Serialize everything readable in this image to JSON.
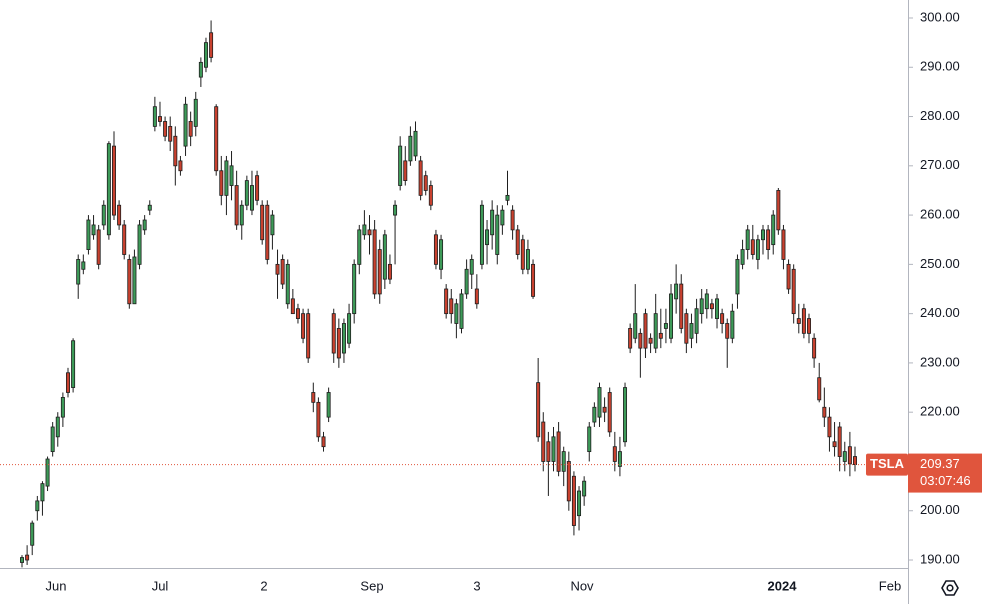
{
  "chart_data": {
    "type": "candlestick",
    "symbol": "TSLA",
    "countdown": "03:07:46",
    "up_color": "#3d9a58",
    "down_color": "#c8412f",
    "wick_color": "#1e1e1e",
    "price_line_color": "#e0553d",
    "open": [
      189.5,
      191,
      193,
      200,
      202,
      205,
      212,
      215,
      219,
      228,
      225,
      246,
      249,
      253,
      256,
      257,
      258,
      256,
      274,
      262,
      258,
      251,
      242,
      250,
      257,
      261,
      278,
      280,
      279,
      278,
      276,
      271,
      274,
      279,
      278,
      288,
      290,
      297,
      282,
      269,
      264,
      266,
      266,
      258,
      262,
      261,
      268,
      262,
      262,
      256,
      250,
      251,
      242,
      243,
      241,
      240,
      240,
      224,
      222,
      215,
      219,
      240,
      237,
      232,
      234,
      240,
      250,
      256,
      257,
      257,
      253,
      247,
      250,
      260,
      266,
      271,
      271,
      272,
      271,
      268,
      266,
      256,
      249,
      245,
      243,
      238,
      237,
      244,
      248,
      245,
      250,
      254,
      256,
      252,
      258,
      263,
      261,
      257,
      255,
      249,
      250,
      226,
      218,
      214,
      210,
      216,
      208,
      210,
      207,
      199,
      203,
      212,
      218,
      219,
      221,
      224,
      213,
      209,
      214,
      237,
      235,
      236,
      240,
      235,
      233,
      236,
      237,
      235,
      243,
      246,
      240,
      235,
      236,
      240,
      241,
      242,
      239,
      240,
      238,
      235,
      244,
      250,
      253,
      255,
      251,
      255,
      257,
      254,
      265,
      257,
      250,
      249,
      239,
      241,
      239,
      235,
      227,
      221,
      219,
      214,
      217,
      210,
      213,
      211
    ],
    "high": [
      191,
      193,
      198,
      203,
      206,
      211,
      218,
      220,
      224,
      229,
      235,
      252,
      252,
      260,
      260,
      258,
      263,
      275,
      277,
      263,
      259,
      252,
      253,
      259,
      260,
      263,
      284,
      283,
      280,
      280,
      278,
      272,
      284,
      281,
      285,
      292,
      296,
      299.5,
      282.5,
      272,
      272,
      273,
      269,
      263,
      268,
      269,
      269,
      263,
      263,
      261,
      253,
      252,
      251,
      245,
      242,
      241,
      241,
      226,
      223,
      216,
      225,
      241,
      239,
      239,
      242,
      251,
      258,
      261,
      260,
      259,
      255,
      257,
      252,
      263,
      276,
      274,
      278,
      279,
      272,
      269,
      267,
      257,
      256,
      246,
      245,
      243,
      245,
      251,
      252,
      248,
      263,
      259,
      263,
      262,
      262,
      269,
      262,
      258,
      256,
      255,
      251,
      231,
      220,
      216,
      217,
      218,
      213,
      212,
      208,
      205,
      207,
      218,
      222,
      226,
      223,
      225,
      216,
      215,
      226,
      238,
      246,
      237,
      241,
      236,
      244,
      241,
      241,
      246,
      250,
      248,
      241,
      240,
      243,
      245,
      245,
      243,
      244,
      241,
      239,
      242,
      252,
      255,
      258,
      258,
      256,
      258,
      258,
      261,
      265.5,
      258,
      251,
      250,
      242,
      242,
      240,
      236,
      230,
      225,
      221,
      218,
      218,
      214,
      216,
      213
    ],
    "low": [
      188.5,
      189,
      191,
      198,
      199,
      204,
      211,
      213,
      217,
      223,
      224,
      243,
      248,
      252,
      255,
      249,
      257,
      255,
      259,
      257,
      251,
      241,
      242,
      249,
      256,
      260,
      277,
      278,
      275,
      273,
      266,
      268,
      272,
      274,
      276,
      286,
      289,
      291,
      268,
      262,
      260,
      263,
      257,
      255,
      261,
      260,
      262,
      254,
      250,
      253,
      243,
      245,
      241,
      240,
      238,
      234,
      230,
      220,
      214,
      212,
      218,
      230,
      229,
      230,
      233,
      238,
      248,
      255,
      252,
      243,
      242,
      245,
      246,
      250,
      265,
      266,
      270,
      271,
      263,
      264,
      261,
      249,
      247,
      239,
      238,
      235,
      236,
      243,
      245,
      241,
      249,
      250,
      253,
      250,
      256,
      262,
      255,
      251,
      248,
      248,
      243,
      214,
      208,
      203,
      208,
      207,
      205,
      200,
      195,
      196,
      201,
      210,
      217,
      217,
      218,
      215,
      208,
      207,
      213,
      232,
      234,
      227,
      231,
      232,
      232,
      233,
      234,
      234,
      240,
      236,
      232,
      233,
      234,
      238,
      239,
      239,
      237,
      236,
      229,
      234,
      241,
      249,
      251,
      251,
      249,
      252,
      251,
      252,
      256,
      249,
      244,
      238,
      236,
      235,
      234,
      229,
      222,
      217,
      212,
      211,
      208,
      208,
      207,
      208
    ],
    "close": [
      190.5,
      190,
      197.5,
      202,
      205.5,
      210.5,
      217,
      219,
      223,
      224,
      234.5,
      251,
      250.5,
      259,
      258,
      250,
      262,
      274.5,
      260,
      258,
      252,
      242,
      251.5,
      258,
      259,
      262,
      282,
      279,
      276,
      275,
      270,
      269,
      282.5,
      276,
      283.5,
      291,
      295,
      292,
      269,
      264,
      271,
      270,
      258,
      262,
      267,
      266,
      263,
      255,
      251,
      260,
      248,
      246,
      250,
      240,
      239,
      235,
      231,
      222,
      215,
      213,
      224,
      232,
      231,
      238,
      240,
      250,
      257,
      258,
      256,
      244,
      244,
      256,
      247,
      262,
      274,
      267,
      276,
      277,
      264,
      265,
      262,
      250,
      255,
      240,
      240,
      242,
      244,
      249,
      251,
      242,
      262,
      257,
      261,
      260,
      261,
      264,
      257,
      252,
      249,
      253,
      243.5,
      215,
      210,
      210,
      215,
      208,
      212,
      202,
      197,
      204,
      206,
      217,
      221,
      225,
      220,
      216,
      210,
      212,
      225,
      233,
      240,
      233,
      233,
      234,
      240,
      235,
      238,
      244,
      246,
      237,
      234,
      238,
      241,
      243,
      244,
      241,
      243,
      238,
      235,
      240.5,
      251,
      253,
      257,
      252,
      255,
      257,
      253,
      260,
      257,
      251,
      245,
      240,
      238,
      236,
      236,
      231,
      222.5,
      219,
      215,
      213,
      211,
      212,
      209.5,
      209.37
    ],
    "ylim": [
      188.38,
      303.65
    ],
    "yticks": [
      {
        "value": 300,
        "label": "300.00"
      },
      {
        "value": 290,
        "label": "290.00"
      },
      {
        "value": 280,
        "label": "280.00"
      },
      {
        "value": 270,
        "label": "270.00"
      },
      {
        "value": 260,
        "label": "260.00"
      },
      {
        "value": 250,
        "label": "250.00"
      },
      {
        "value": 240,
        "label": "240.00"
      },
      {
        "value": 230,
        "label": "230.00"
      },
      {
        "value": 220,
        "label": "220.00"
      },
      {
        "value": 210,
        "label": "210.00"
      },
      {
        "value": 200,
        "label": "200.00"
      },
      {
        "value": 190,
        "label": "190.00"
      }
    ],
    "x_labels": [
      "Jun",
      "Jul",
      "2",
      "Sep",
      "3",
      "Nov",
      "2024",
      "Feb"
    ]
  }
}
